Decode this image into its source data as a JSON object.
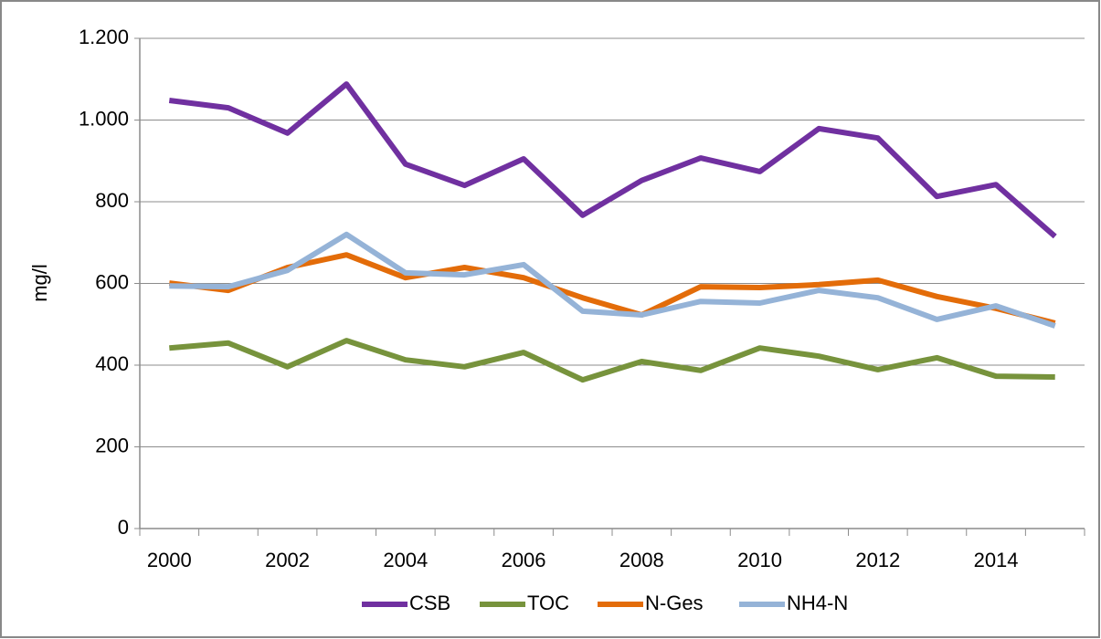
{
  "chart_data": {
    "type": "line",
    "y_label": "mg/l",
    "categories": [
      "2000",
      null,
      "2002",
      null,
      "2004",
      null,
      "2006",
      null,
      "2008",
      null,
      "2010",
      null,
      "2012",
      null,
      "2014",
      null
    ],
    "series": [
      {
        "name": "CSB",
        "color": "#7030a0",
        "values": [
          1048,
          1030,
          968,
          1088,
          892,
          840,
          905,
          767,
          852,
          907,
          874,
          979,
          956,
          813,
          842,
          715
        ]
      },
      {
        "name": "TOC",
        "color": "#77933c",
        "values": [
          442,
          454,
          396,
          460,
          413,
          396,
          431,
          364,
          409,
          387,
          442,
          422,
          389,
          418,
          373,
          371
        ]
      },
      {
        "name": "N-Ges",
        "color": "#e36c09",
        "values": [
          601,
          583,
          639,
          670,
          614,
          639,
          614,
          565,
          523,
          592,
          590,
          597,
          608,
          568,
          539,
          503
        ]
      },
      {
        "name": "NH4-N",
        "color": "#95b3d7",
        "values": [
          594,
          592,
          632,
          720,
          626,
          621,
          646,
          532,
          523,
          556,
          552,
          583,
          565,
          512,
          545,
          496
        ]
      }
    ],
    "ylim": [
      0,
      1200
    ],
    "yticks": [
      0,
      200,
      400,
      600,
      800,
      {
        "value": 1000,
        "label": "1.000"
      },
      {
        "value": 1200,
        "label": "1.200"
      }
    ],
    "grid": true,
    "legend": "bottom"
  }
}
